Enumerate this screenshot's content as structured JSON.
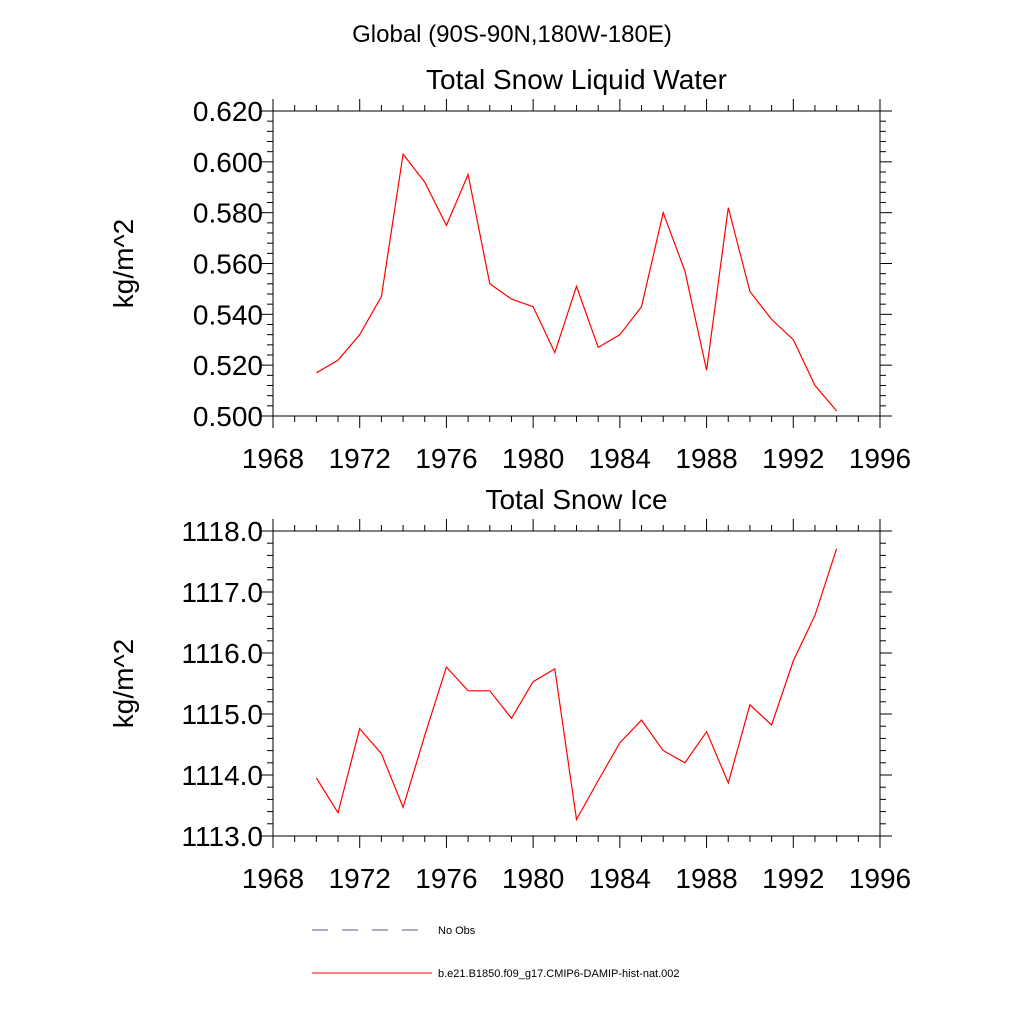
{
  "figure_title": "Global (90S-90N,180W-180E)",
  "colors": {
    "series_line": "#ff0000",
    "no_obs_line": "#5a5a8c",
    "axis": "#000000"
  },
  "legend": {
    "entries": [
      {
        "label": "No Obs",
        "style": "dashed"
      },
      {
        "label": "b.e21.B1850.f09_g17.CMIP6-DAMIP-hist-nat.002",
        "style": "solid"
      }
    ]
  },
  "chart_data": [
    {
      "type": "line",
      "title": "Total Snow Liquid Water",
      "xlabel": "",
      "ylabel": "kg/m^2",
      "xlim": [
        1968,
        1996
      ],
      "ylim": [
        0.5,
        0.62
      ],
      "x_ticks": [
        "1968",
        "1972",
        "1976",
        "1980",
        "1984",
        "1988",
        "1992",
        "1996"
      ],
      "y_ticks": [
        "0.500",
        "0.520",
        "0.540",
        "0.560",
        "0.580",
        "0.600",
        "0.620"
      ],
      "x": [
        1970,
        1971,
        1972,
        1973,
        1974,
        1975,
        1976,
        1977,
        1978,
        1979,
        1980,
        1981,
        1982,
        1983,
        1984,
        1985,
        1986,
        1987,
        1988,
        1989,
        1990,
        1991,
        1992,
        1993,
        1994
      ],
      "series": [
        {
          "name": "b.e21.B1850.f09_g17.CMIP6-DAMIP-hist-nat.002",
          "values": [
            0.517,
            0.522,
            0.532,
            0.547,
            0.603,
            0.592,
            0.575,
            0.595,
            0.552,
            0.546,
            0.543,
            0.525,
            0.551,
            0.527,
            0.532,
            0.543,
            0.58,
            0.557,
            0.518,
            0.582,
            0.549,
            0.538,
            0.53,
            0.512,
            0.502
          ]
        }
      ],
      "grid": false,
      "legend_position": "bottom"
    },
    {
      "type": "line",
      "title": "Total Snow Ice",
      "xlabel": "",
      "ylabel": "kg/m^2",
      "xlim": [
        1968,
        1996
      ],
      "ylim": [
        1113.0,
        1118.0
      ],
      "x_ticks": [
        "1968",
        "1972",
        "1976",
        "1980",
        "1984",
        "1988",
        "1992",
        "1996"
      ],
      "y_ticks": [
        "1113.0",
        "1114.0",
        "1115.0",
        "1116.0",
        "1117.0",
        "1118.0"
      ],
      "x": [
        1970,
        1971,
        1972,
        1973,
        1974,
        1975,
        1976,
        1977,
        1978,
        1979,
        1980,
        1981,
        1982,
        1983,
        1984,
        1985,
        1986,
        1987,
        1988,
        1989,
        1990,
        1991,
        1992,
        1993,
        1994
      ],
      "series": [
        {
          "name": "b.e21.B1850.f09_g17.CMIP6-DAMIP-hist-nat.002",
          "values": [
            1113.95,
            1113.38,
            1114.76,
            1114.35,
            1113.47,
            1114.65,
            1115.77,
            1115.38,
            1115.38,
            1114.93,
            1115.53,
            1115.74,
            1113.27,
            1113.91,
            1114.53,
            1114.9,
            1114.4,
            1114.2,
            1114.71,
            1113.87,
            1115.15,
            1114.82,
            1115.87,
            1116.62,
            1117.71
          ]
        }
      ],
      "grid": false,
      "legend_position": "bottom"
    }
  ]
}
